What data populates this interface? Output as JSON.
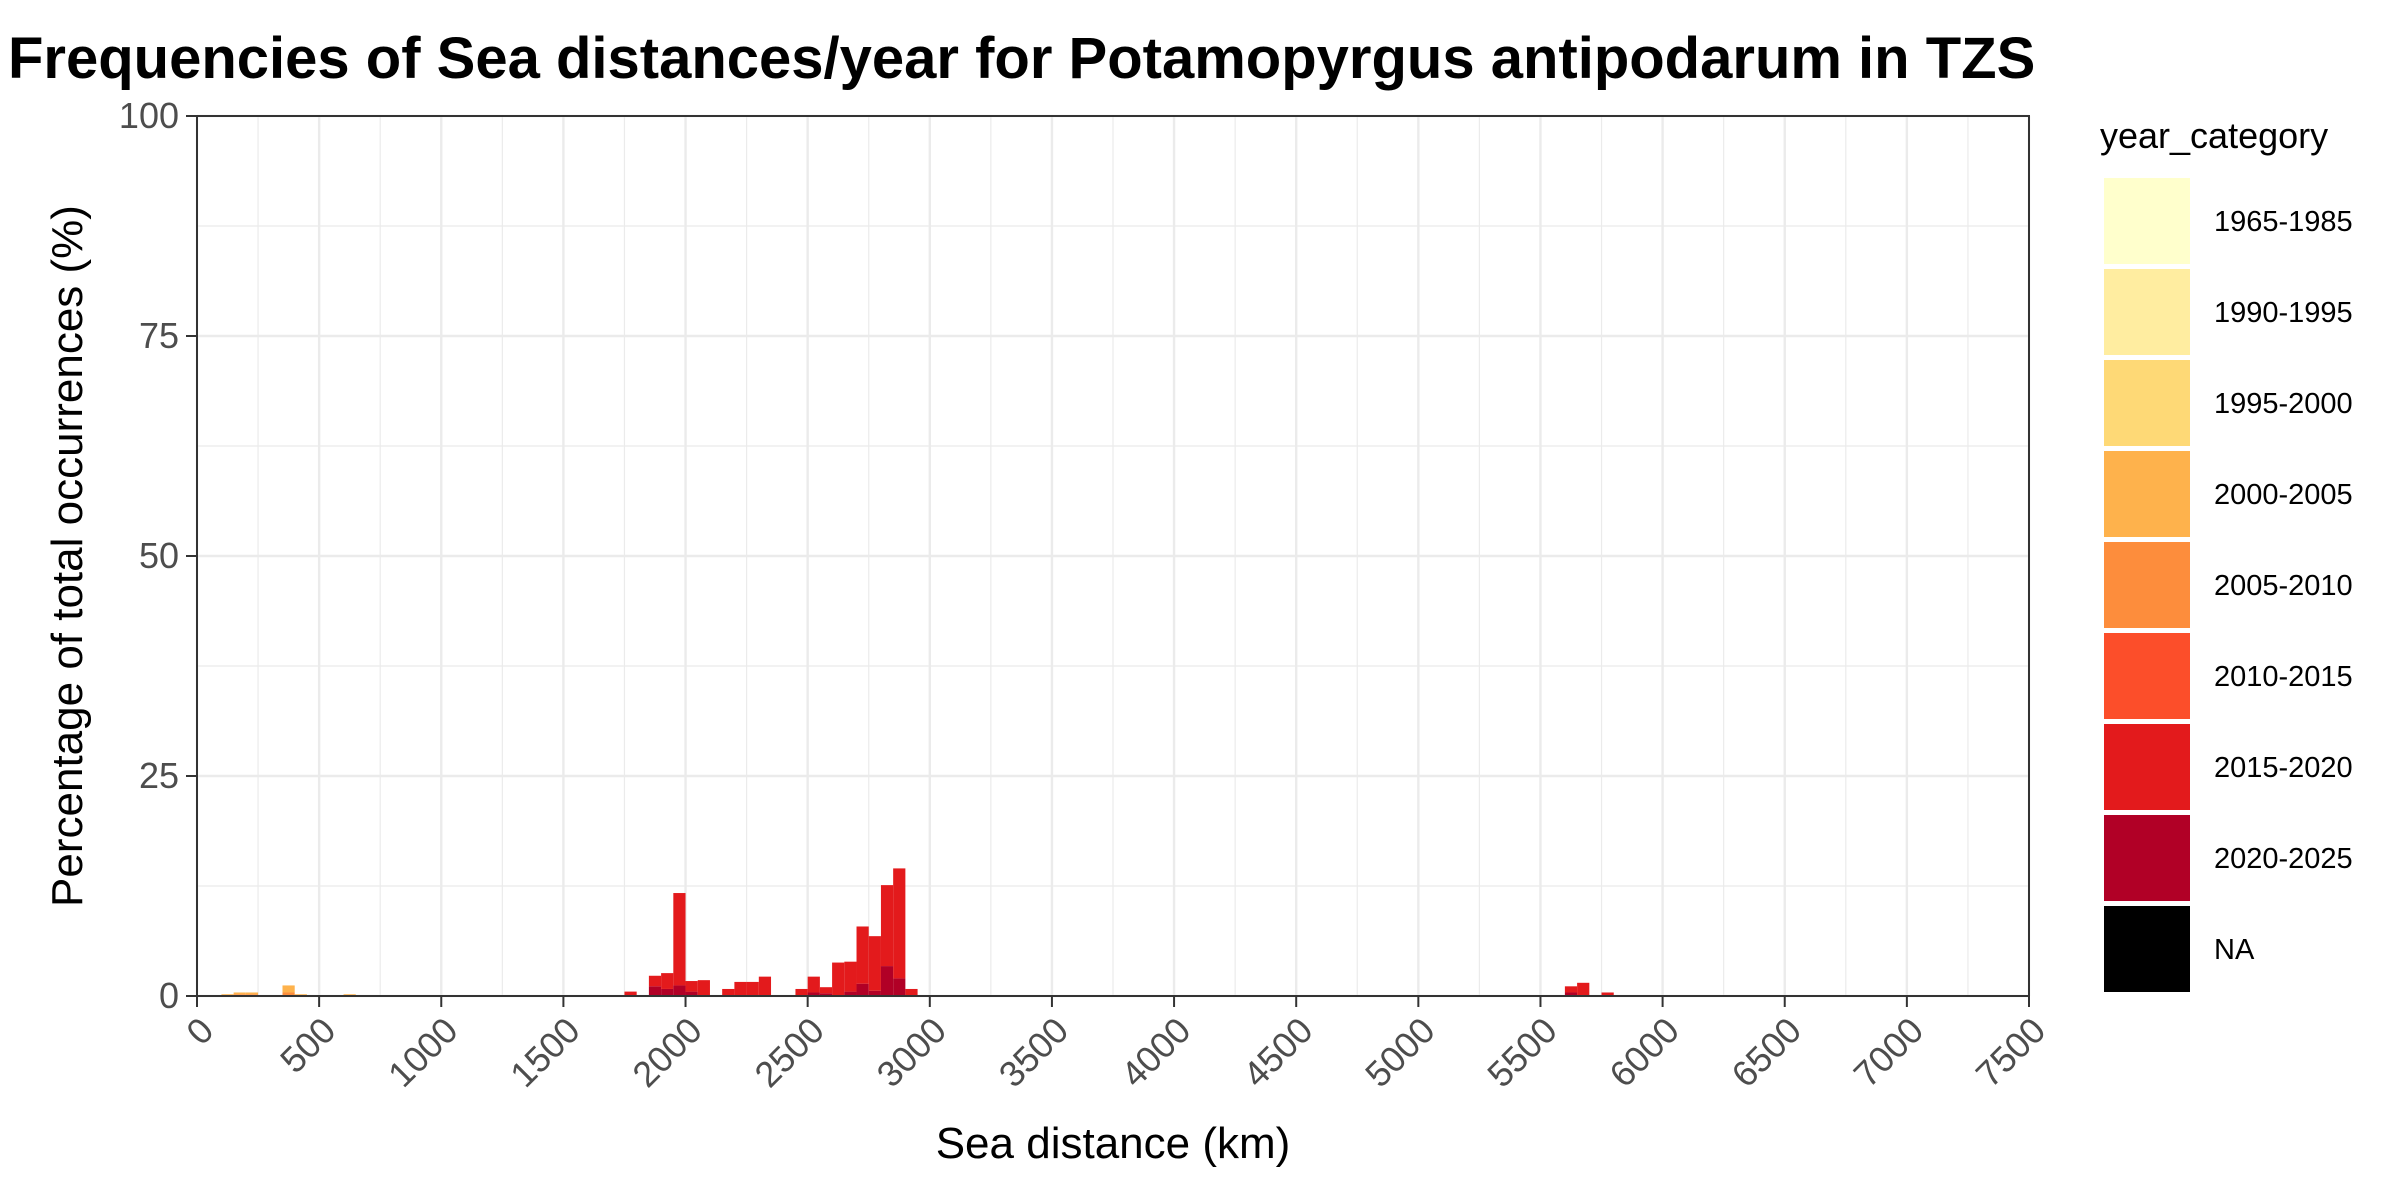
{
  "chart_data": {
    "type": "bar",
    "title": "Frequencies of Sea distances/year for Potamopyrgus antipodarum in TZS",
    "xlabel": "Sea distance (km)",
    "ylabel": "Percentage of total occurrences (%)",
    "xlim": [
      0,
      7500
    ],
    "ylim": [
      0,
      100
    ],
    "x_ticks": [
      "0",
      "500",
      "1000",
      "1500",
      "2000",
      "2500",
      "3000",
      "3500",
      "4000",
      "4500",
      "5000",
      "5500",
      "6000",
      "6500",
      "7000",
      "7500"
    ],
    "y_ticks": [
      "0",
      "25",
      "50",
      "75",
      "100"
    ],
    "bin_width": 50,
    "grid": true,
    "stacked": true,
    "legend": {
      "title": "year_category",
      "position": "right",
      "entries": [
        {
          "label": "1965-1985",
          "color": "#FFFFCC"
        },
        {
          "label": "1990-1995",
          "color": "#FFEDA0"
        },
        {
          "label": "1995-2000",
          "color": "#FED976"
        },
        {
          "label": "2000-2005",
          "color": "#FEB24C"
        },
        {
          "label": "2005-2010",
          "color": "#FD8D3C"
        },
        {
          "label": "2010-2015",
          "color": "#FC4E2A"
        },
        {
          "label": "2015-2020",
          "color": "#E31A1C"
        },
        {
          "label": "2020-2025",
          "color": "#B10026"
        },
        {
          "label": "NA",
          "color": "#000000"
        }
      ]
    },
    "series": [
      {
        "name": "2000-2005",
        "x": [
          125,
          175,
          225,
          375,
          425,
          625
        ],
        "values": [
          0.2,
          0.2,
          0.2,
          0.8,
          0.2,
          0.2
        ]
      },
      {
        "name": "2005-2010",
        "x": [
          175,
          225,
          375
        ],
        "values": [
          0.2,
          0.2,
          0.4
        ]
      },
      {
        "name": "2015-2020",
        "x": [
          1775,
          1875,
          1925,
          1975,
          2025,
          2075,
          2175,
          2225,
          2275,
          2325,
          2475,
          2525,
          2575,
          2625,
          2675,
          2725,
          2775,
          2825,
          2875,
          2925,
          5625,
          5675,
          5775
        ],
        "values": [
          0.5,
          1.2,
          1.8,
          10.5,
          1.2,
          1.8,
          0.8,
          1.6,
          1.6,
          2.2,
          0.8,
          1.8,
          0.7,
          3.8,
          3.4,
          6.5,
          6.2,
          9.2,
          12.5,
          0.8,
          0.7,
          1.5,
          0.4
        ]
      },
      {
        "name": "2020-2025",
        "x": [
          1875,
          1925,
          1975,
          2025,
          2525,
          2575,
          2675,
          2725,
          2775,
          2825,
          2875,
          5625
        ],
        "values": [
          1.1,
          0.8,
          1.2,
          0.5,
          0.4,
          0.3,
          0.5,
          1.4,
          0.6,
          3.4,
          2.0,
          0.4
        ]
      }
    ]
  }
}
